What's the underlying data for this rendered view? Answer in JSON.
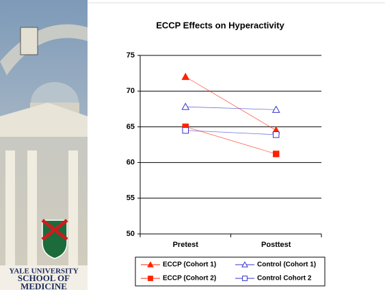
{
  "chart_data": {
    "type": "line",
    "title": "ECCP Effects on Hyperactivity",
    "categories": [
      "Pretest",
      "Posttest"
    ],
    "series": [
      {
        "name": "ECCP (Cohort 1)",
        "color": "#ff2200",
        "marker": "triangle",
        "filled": true,
        "values": [
          72,
          64.5
        ]
      },
      {
        "name": "Control (Cohort 1)",
        "color": "#3333cc",
        "marker": "triangle",
        "filled": false,
        "values": [
          67.8,
          67.4
        ]
      },
      {
        "name": "ECCP (Cohort 2)",
        "color": "#ff2200",
        "marker": "square",
        "filled": true,
        "values": [
          65,
          61.2
        ]
      },
      {
        "name": "Control Cohort 2",
        "color": "#3333cc",
        "marker": "square",
        "filled": false,
        "values": [
          64.5,
          63.9
        ]
      }
    ],
    "ylim": [
      50,
      75
    ],
    "yticks": [
      50,
      55,
      60,
      65,
      70,
      75
    ],
    "grid": true,
    "legend": "bottom"
  },
  "logo_text": [
    "YALE UNIVERSITY",
    "SCHOOL OF",
    "MEDICINE"
  ]
}
